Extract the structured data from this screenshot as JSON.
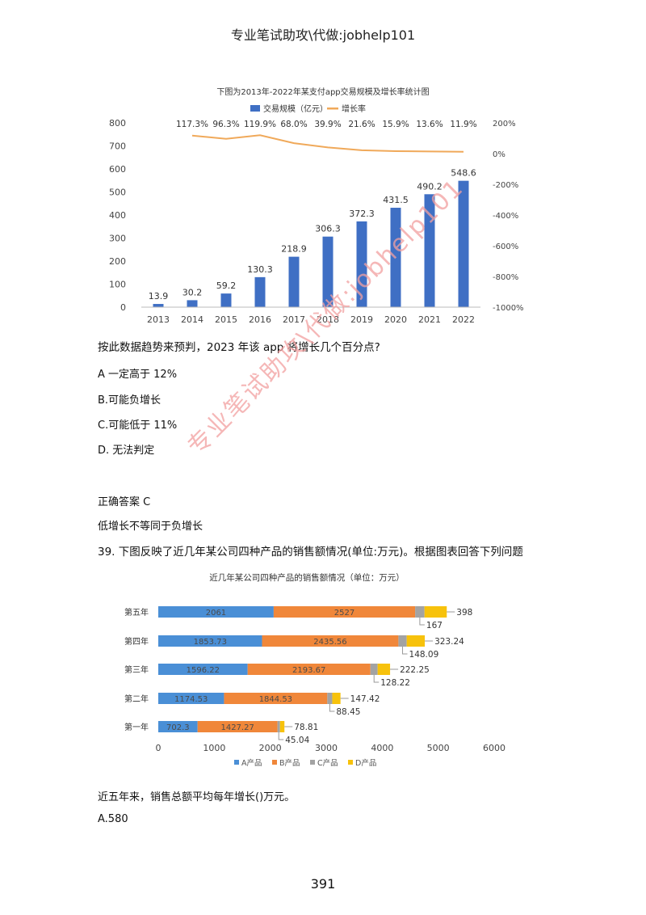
{
  "header": "专业笔试助攻\\代做:jobhelp101",
  "watermark": "专业笔试助攻\\代做:jobhelp101",
  "q38": {
    "question": "按此数据趋势来预判，2023 年该 app 将增长几个百分点?",
    "options": [
      "A 一定高于 12%",
      "B.可能负增长",
      "C.可能低于 11%",
      "D.  无法判定"
    ],
    "answer": "正确答案 C",
    "explanation": "低增长不等同于负增长"
  },
  "q39": {
    "question": "39. 下图反映了近几年某公司四种产品的销售额情况(单位:万元)。根据图表回答下列问题",
    "sub_question": "近五年来，销售总额平均每年增长()万元。",
    "option_a": "A.580"
  },
  "page_number": "391",
  "chart_data": [
    {
      "type": "bar",
      "title": "下图为2013年-2022年某支付app交易规模及增长率统计图",
      "categories": [
        "2013",
        "2014",
        "2015",
        "2016",
        "2017",
        "2018",
        "2019",
        "2020",
        "2021",
        "2022"
      ],
      "series": [
        {
          "name": "交易规模（亿元）",
          "type": "bar",
          "values": [
            13.9,
            30.2,
            59.2,
            130.3,
            218.9,
            306.3,
            372.3,
            431.5,
            490.2,
            548.6
          ],
          "labels": [
            "13.9",
            "30.2",
            "59.2",
            "130.3",
            "218.9",
            "306.3",
            "372.3",
            "431.5",
            "490.2",
            "548.6"
          ],
          "axis": "left"
        },
        {
          "name": "增长率",
          "type": "line",
          "values": [
            null,
            117.3,
            96.3,
            119.9,
            68.0,
            39.9,
            21.6,
            15.9,
            13.6,
            11.9
          ],
          "labels": [
            "",
            "117.3%",
            "96.3%",
            "119.9%",
            "68.0%",
            "39.9%",
            "21.6%",
            "15.9%",
            "13.6%",
            "11.9%"
          ],
          "axis": "right"
        }
      ],
      "ylim_left": [
        0,
        800
      ],
      "yticks_left": [
        "0",
        "100",
        "200",
        "300",
        "400",
        "500",
        "600",
        "700",
        "800"
      ],
      "ylim_right": [
        -1000,
        200
      ],
      "yticks_right": [
        "-1000%",
        "-800%",
        "-600%",
        "-400%",
        "-200%",
        "0%",
        "200%"
      ],
      "colors": {
        "bar": "#3f6fc4",
        "line": "#f0a95a"
      },
      "legend": "top",
      "grid": false
    },
    {
      "type": "bar",
      "orientation": "horizontal",
      "stacked": true,
      "title": "近几年某公司四种产品的销售额情况（单位：万元）",
      "categories": [
        "第一年",
        "第二年",
        "第三年",
        "第四年",
        "第五年"
      ],
      "series": [
        {
          "name": "A产品",
          "values": [
            702.3,
            1174.53,
            1596.22,
            1853.73,
            2061
          ],
          "labels": [
            "702.3",
            "1174.53",
            "1596.22",
            "1853.73",
            "2061"
          ]
        },
        {
          "name": "B产品",
          "values": [
            1427.27,
            1844.53,
            2193.67,
            2435.56,
            2527
          ],
          "labels": [
            "1427.27",
            "1844.53",
            "2193.67",
            "2435.56",
            "2527"
          ]
        },
        {
          "name": "C产品",
          "values": [
            45.04,
            88.45,
            128.22,
            148.09,
            167
          ],
          "labels": [
            "45.04",
            "88.45",
            "128.22",
            "148.09",
            "167"
          ]
        },
        {
          "name": "D产品",
          "values": [
            78.81,
            147.42,
            222.25,
            323.24,
            398
          ],
          "labels": [
            "78.81",
            "147.42",
            "222.25",
            "323.24",
            "398"
          ]
        }
      ],
      "xlim": [
        0,
        6000
      ],
      "xticks": [
        "0",
        "1000",
        "2000",
        "3000",
        "4000",
        "5000",
        "6000"
      ],
      "colors": {
        "A产品": "#4a8fd6",
        "B产品": "#f0873a",
        "C产品": "#a3a3a3",
        "D产品": "#f7c20c"
      },
      "legend": "bottom",
      "grid": false
    }
  ]
}
